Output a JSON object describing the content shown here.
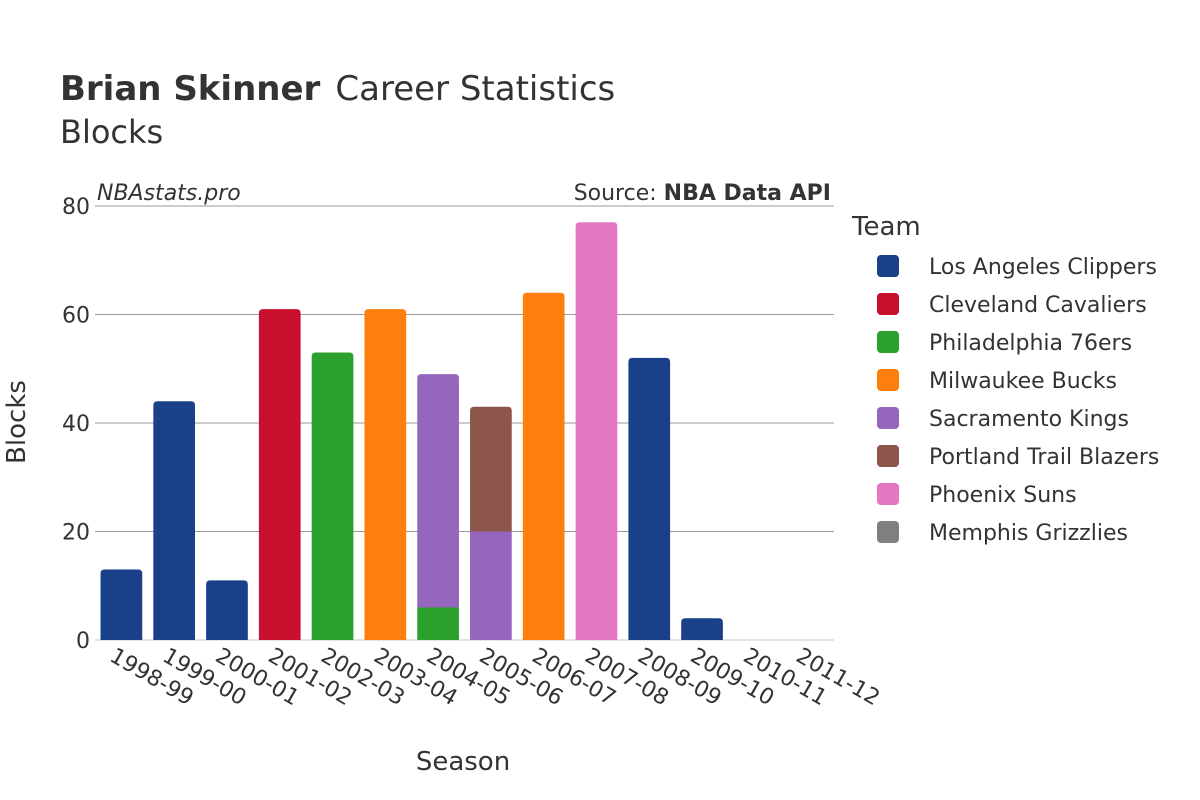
{
  "page": {
    "title_bold": "Brian Skinner",
    "title_rest": "Career Statistics",
    "subtitle": "Blocks",
    "watermark": "NBAstats.pro",
    "source_label": "Source: ",
    "source_value": "NBA Data API"
  },
  "chart_data": {
    "type": "bar",
    "stacked": true,
    "title": "Brian Skinner Career Statistics",
    "subtitle": "Blocks",
    "xlabel": "Season",
    "ylabel": "Blocks",
    "ylim": [
      0,
      80
    ],
    "yticks": [
      0,
      20,
      40,
      60,
      80
    ],
    "grid": true,
    "legend_title": "Team",
    "legend_position": "right",
    "categories": [
      "1998-99",
      "1999-00",
      "2000-01",
      "2001-02",
      "2002-03",
      "2003-04",
      "2004-05",
      "2005-06",
      "2006-07",
      "2007-08",
      "2008-09",
      "2009-10",
      "2010-11",
      "2011-12"
    ],
    "series": [
      {
        "name": "Los Angeles Clippers",
        "color": "#1a408a",
        "values": [
          13,
          44,
          11,
          0,
          0,
          0,
          0,
          0,
          0,
          0,
          52,
          4,
          0,
          0
        ]
      },
      {
        "name": "Cleveland Cavaliers",
        "color": "#c8102e",
        "values": [
          0,
          0,
          0,
          61,
          0,
          0,
          0,
          0,
          0,
          0,
          0,
          0,
          0,
          0
        ]
      },
      {
        "name": "Philadelphia 76ers",
        "color": "#2ca02c",
        "values": [
          0,
          0,
          0,
          0,
          53,
          0,
          6,
          0,
          0,
          0,
          0,
          0,
          0,
          0
        ]
      },
      {
        "name": "Milwaukee Bucks",
        "color": "#ff7f0e",
        "values": [
          0,
          0,
          0,
          0,
          0,
          61,
          0,
          0,
          64,
          0,
          0,
          0,
          0,
          0
        ]
      },
      {
        "name": "Sacramento Kings",
        "color": "#9467bd",
        "values": [
          0,
          0,
          0,
          0,
          0,
          0,
          43,
          20,
          0,
          0,
          0,
          0,
          0,
          0
        ]
      },
      {
        "name": "Portland Trail Blazers",
        "color": "#8c564b",
        "values": [
          0,
          0,
          0,
          0,
          0,
          0,
          0,
          23,
          0,
          0,
          0,
          0,
          0,
          0
        ]
      },
      {
        "name": "Phoenix Suns",
        "color": "#e377c2",
        "values": [
          0,
          0,
          0,
          0,
          0,
          0,
          0,
          0,
          0,
          77,
          0,
          0,
          0,
          0
        ]
      },
      {
        "name": "Memphis Grizzlies",
        "color": "#7f7f7f",
        "values": [
          0,
          0,
          0,
          0,
          0,
          0,
          0,
          0,
          0,
          0,
          0,
          0,
          0,
          0
        ]
      }
    ]
  }
}
